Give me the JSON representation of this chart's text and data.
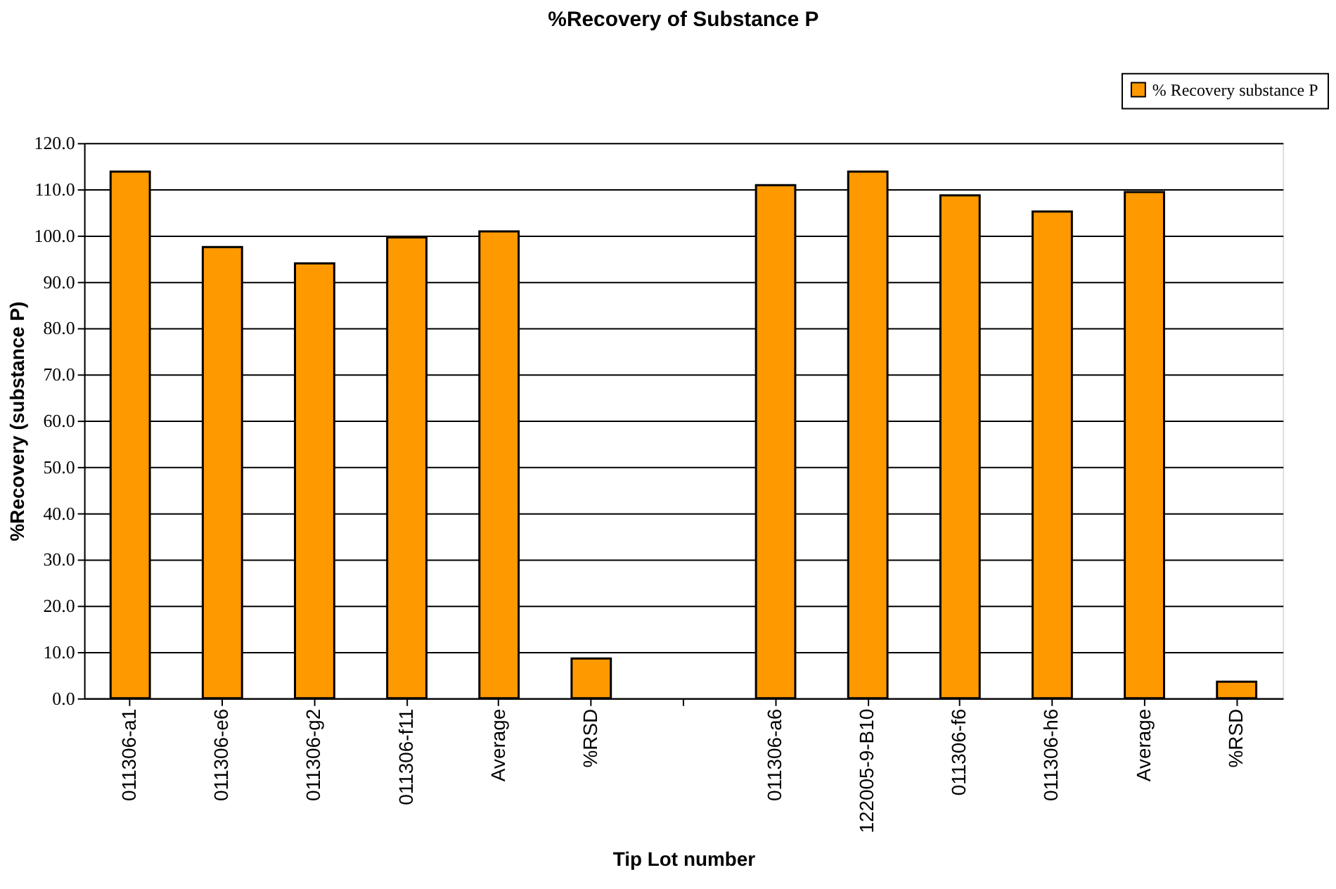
{
  "chart_data": {
    "type": "bar",
    "title": "%Recovery of Substance P",
    "xlabel": "Tip Lot number",
    "ylabel": "%Recovery (substance P)",
    "categories": [
      "011306-a1",
      "011306-e6",
      "011306-g2",
      "011306-f11",
      "Average",
      "%RSD",
      null,
      "011306-a6",
      "122005-9-B10",
      "011306-f6",
      "011306-h6",
      "Average",
      "%RSD"
    ],
    "series": [
      {
        "name": "% Recovery substance P",
        "color": "#ff9900",
        "values": [
          113.8,
          97.5,
          94.0,
          99.6,
          100.9,
          8.6,
          null,
          110.9,
          113.8,
          108.7,
          105.2,
          109.4,
          3.6
        ]
      }
    ],
    "ylim": [
      0,
      120
    ],
    "yticks": [
      {
        "value": 0,
        "label": "0.0"
      },
      {
        "value": 10,
        "label": "10.0"
      },
      {
        "value": 20,
        "label": "20.0"
      },
      {
        "value": 30,
        "label": "30.0"
      },
      {
        "value": 40,
        "label": "40.0"
      },
      {
        "value": 50,
        "label": "50.0"
      },
      {
        "value": 60,
        "label": "60.0"
      },
      {
        "value": 70,
        "label": "70.0"
      },
      {
        "value": 80,
        "label": "80.0"
      },
      {
        "value": 90,
        "label": "90.0"
      },
      {
        "value": 100,
        "label": "100.0"
      },
      {
        "value": 110,
        "label": "110.0"
      },
      {
        "value": 120,
        "label": "120.0"
      }
    ],
    "grid": "y",
    "legend": "top right"
  }
}
